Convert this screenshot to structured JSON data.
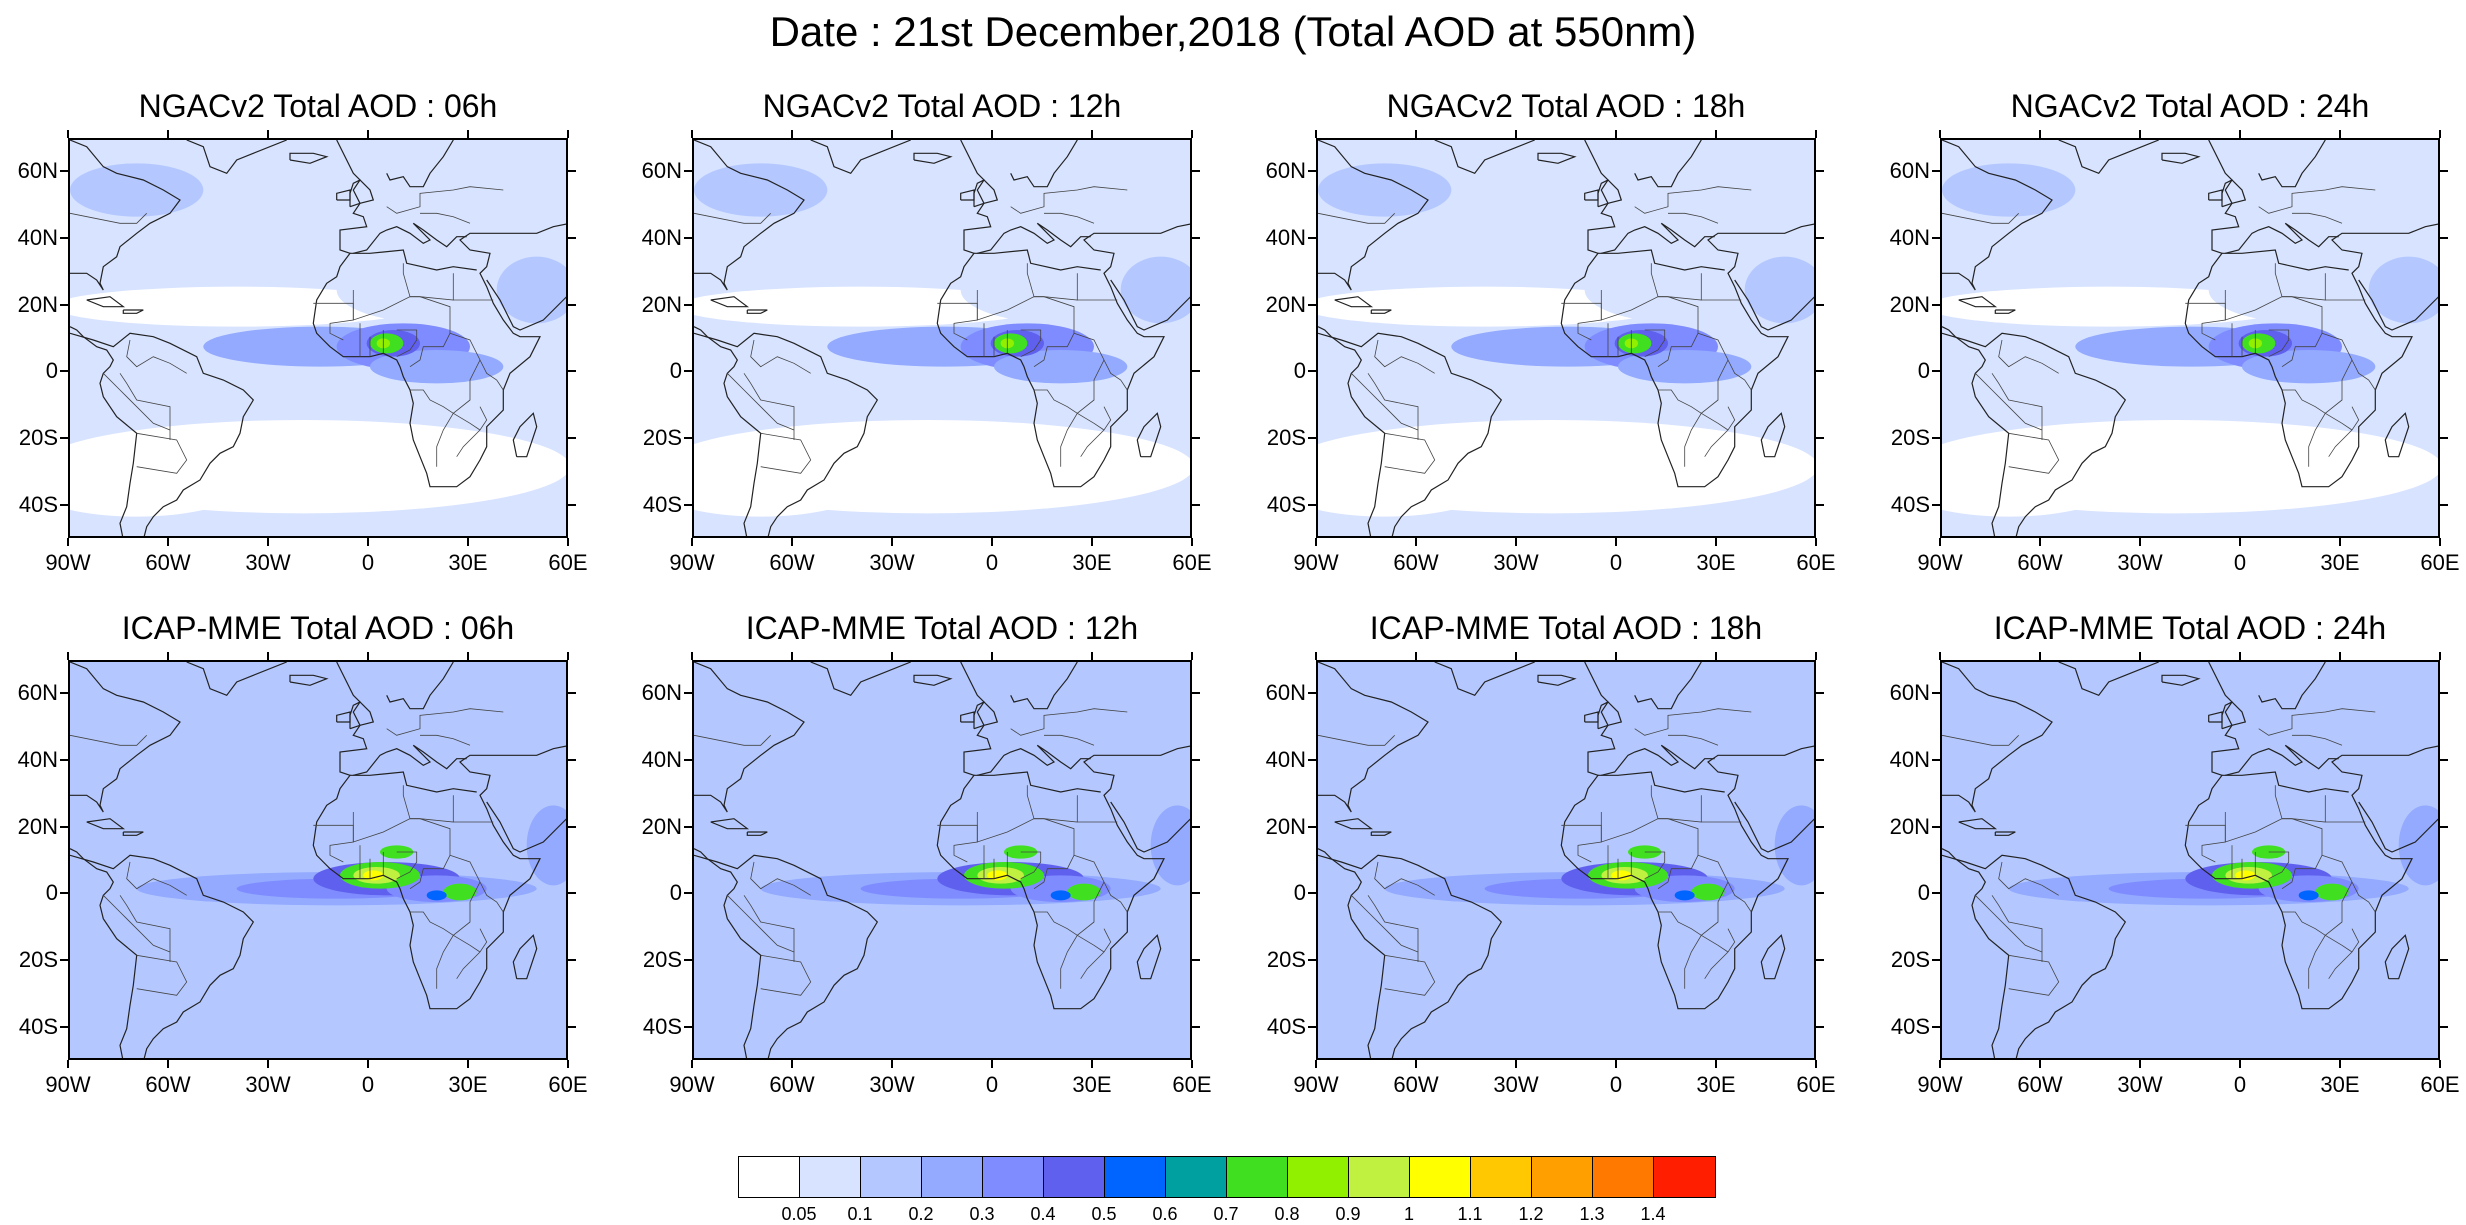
{
  "title": "Date : 21st December,2018 (Total AOD at 550nm)",
  "lat_labels": [
    "60N",
    "40N",
    "20N",
    "0",
    "20S",
    "40S"
  ],
  "lon_labels": [
    "90W",
    "60W",
    "30W",
    "0",
    "30E",
    "60E"
  ],
  "panels": [
    {
      "title": "NGACv2 Total AOD : 06h",
      "model": "NGACv2",
      "hour": "06h"
    },
    {
      "title": "NGACv2 Total AOD : 12h",
      "model": "NGACv2",
      "hour": "12h"
    },
    {
      "title": "NGACv2 Total AOD : 18h",
      "model": "NGACv2",
      "hour": "18h"
    },
    {
      "title": "NGACv2 Total AOD : 24h",
      "model": "NGACv2",
      "hour": "24h"
    },
    {
      "title": "ICAP-MME Total AOD : 06h",
      "model": "ICAP-MME",
      "hour": "06h"
    },
    {
      "title": "ICAP-MME Total AOD : 12h",
      "model": "ICAP-MME",
      "hour": "12h"
    },
    {
      "title": "ICAP-MME Total AOD : 18h",
      "model": "ICAP-MME",
      "hour": "18h"
    },
    {
      "title": "ICAP-MME Total AOD : 24h",
      "model": "ICAP-MME",
      "hour": "24h"
    }
  ],
  "colorbar": {
    "labels": [
      "0.05",
      "0.1",
      "0.2",
      "0.3",
      "0.4",
      "0.5",
      "0.6",
      "0.7",
      "0.8",
      "0.9",
      "1",
      "1.1",
      "1.2",
      "1.3",
      "1.4"
    ],
    "colors": [
      "#ffffff",
      "#d7e3ff",
      "#b4c8ff",
      "#93aaff",
      "#7f8cff",
      "#6060ef",
      "#0064ff",
      "#00a0a0",
      "#40e020",
      "#90f000",
      "#c0f040",
      "#ffff00",
      "#ffc800",
      "#ffa000",
      "#ff7800",
      "#ff1e00"
    ]
  },
  "chart_data": {
    "type": "heatmap",
    "variable": "Total AOD at 550nm",
    "date": "21st December,2018",
    "xlim": [
      -90,
      60
    ],
    "ylim": [
      -50,
      70
    ],
    "color_levels": [
      0.05,
      0.1,
      0.2,
      0.3,
      0.4,
      0.5,
      0.6,
      0.7,
      0.8,
      0.9,
      1,
      1.1,
      1.2,
      1.3,
      1.4
    ],
    "panels": [
      {
        "model": "NGACv2",
        "hour": "06h",
        "max_aod_approx": 0.9,
        "max_location": "West Africa ~8N, 5E"
      },
      {
        "model": "NGACv2",
        "hour": "12h",
        "max_aod_approx": 0.9,
        "max_location": "West Africa ~8N, 5E"
      },
      {
        "model": "NGACv2",
        "hour": "18h",
        "max_aod_approx": 0.8,
        "max_location": "West Africa ~10N, 5E"
      },
      {
        "model": "NGACv2",
        "hour": "24h",
        "max_aod_approx": 0.8,
        "max_location": "West Africa ~10N, 3E"
      },
      {
        "model": "ICAP-MME",
        "hour": "06h",
        "max_aod_approx": 1.1,
        "max_location": "Gulf of Guinea ~5N, 0E"
      },
      {
        "model": "ICAP-MME",
        "hour": "12h",
        "max_aod_approx": 1.1,
        "max_location": "Gulf of Guinea ~5N, 0E"
      },
      {
        "model": "ICAP-MME",
        "hour": "18h",
        "max_aod_approx": 1.1,
        "max_location": "Gulf of Guinea ~5N, 0E"
      },
      {
        "model": "ICAP-MME",
        "hour": "24h",
        "max_aod_approx": 1.1,
        "max_location": "Central Africa ~3N, 10E"
      }
    ]
  }
}
